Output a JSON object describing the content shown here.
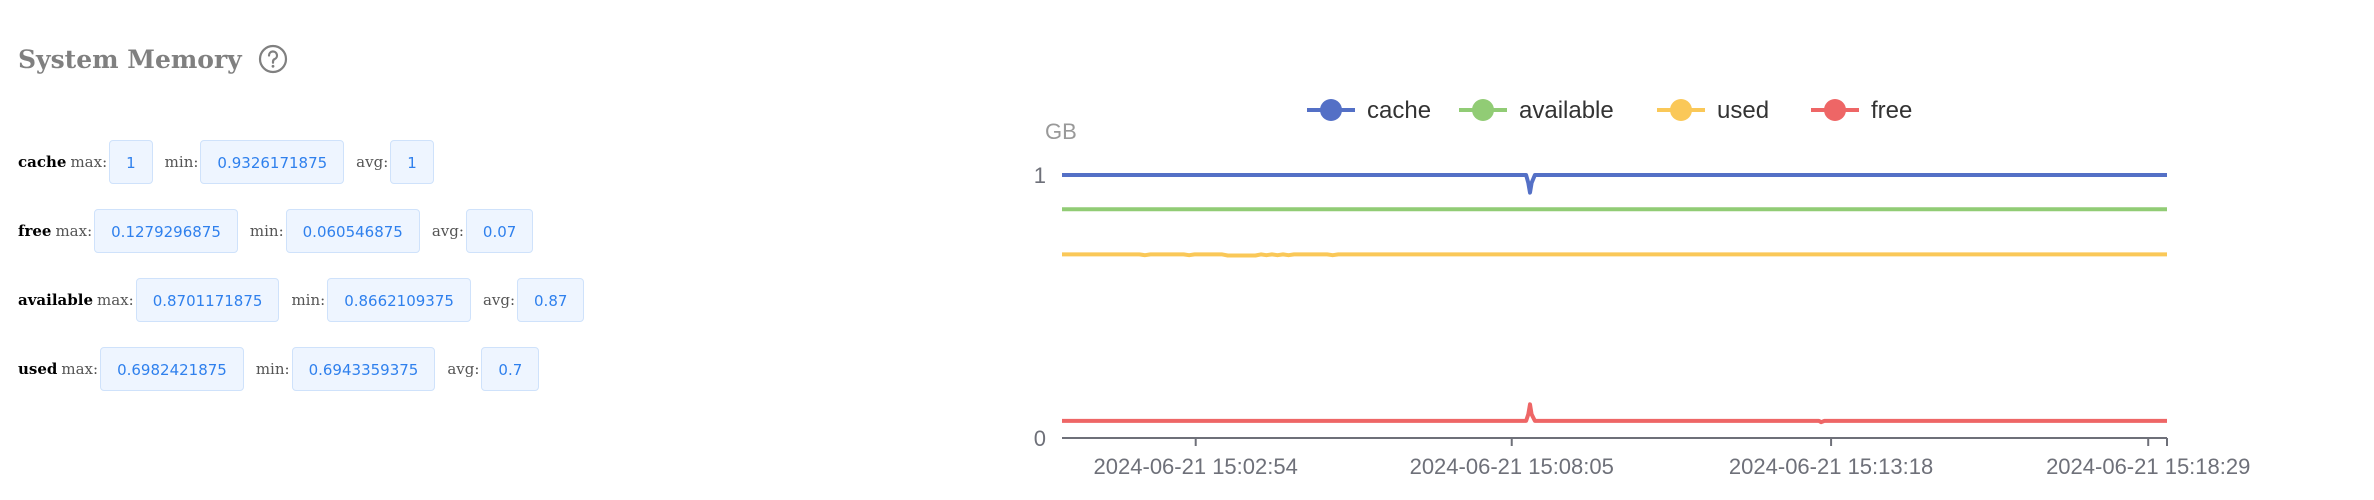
{
  "panel": {
    "title": "System Memory",
    "help_icon": "question-circle-icon"
  },
  "stats": [
    {
      "metric": "cache",
      "max_label": "max:",
      "max": "1",
      "min_label": "min:",
      "min": "0.9326171875",
      "avg_label": "avg:",
      "avg": "1"
    },
    {
      "metric": "free",
      "max_label": "max:",
      "max": "0.1279296875",
      "min_label": "min:",
      "min": "0.060546875",
      "avg_label": "avg:",
      "avg": "0.07"
    },
    {
      "metric": "available",
      "max_label": "max:",
      "max": "0.8701171875",
      "min_label": "min:",
      "min": "0.8662109375",
      "avg_label": "avg:",
      "avg": "0.87"
    },
    {
      "metric": "used",
      "max_label": "max:",
      "max": "0.6982421875",
      "min_label": "min:",
      "min": "0.6943359375",
      "avg_label": "avg:",
      "avg": "0.7"
    }
  ],
  "chart_data": {
    "type": "line",
    "title": "",
    "ylabel": "GB",
    "xlabel": "",
    "ylim": [
      0,
      1
    ],
    "yticks": [
      "0",
      "1"
    ],
    "x_ticks": [
      "2024-06-21 15:02:54",
      "2024-06-21 15:08:05",
      "2024-06-21 15:13:18",
      "2024-06-21 15:18:29"
    ],
    "x_tick_fracs": [
      0.121,
      0.407,
      0.696,
      0.983
    ],
    "legend_position": "top-center",
    "series": [
      {
        "name": "cache",
        "color": "#5470c6",
        "values": [
          [
            0.0,
            1.0
          ],
          [
            0.42,
            1.0
          ],
          [
            0.422,
            0.97
          ],
          [
            0.4235,
            0.933
          ],
          [
            0.425,
            0.97
          ],
          [
            0.428,
            1.0
          ],
          [
            1.0,
            1.0
          ]
        ]
      },
      {
        "name": "available",
        "color": "#91cc75",
        "values": [
          [
            0.0,
            0.87
          ],
          [
            1.0,
            0.87
          ]
        ]
      },
      {
        "name": "used",
        "color": "#fac858",
        "values": [
          [
            0.0,
            0.698
          ],
          [
            0.07,
            0.698
          ],
          [
            0.075,
            0.695
          ],
          [
            0.08,
            0.698
          ],
          [
            0.11,
            0.698
          ],
          [
            0.115,
            0.695
          ],
          [
            0.12,
            0.698
          ],
          [
            0.145,
            0.698
          ],
          [
            0.15,
            0.694
          ],
          [
            0.175,
            0.694
          ],
          [
            0.18,
            0.698
          ],
          [
            0.185,
            0.695
          ],
          [
            0.19,
            0.698
          ],
          [
            0.195,
            0.695
          ],
          [
            0.2,
            0.698
          ],
          [
            0.205,
            0.695
          ],
          [
            0.21,
            0.698
          ],
          [
            0.24,
            0.698
          ],
          [
            0.245,
            0.695
          ],
          [
            0.25,
            0.698
          ],
          [
            1.0,
            0.698
          ]
        ]
      },
      {
        "name": "free",
        "color": "#ee6666",
        "values": [
          [
            0.0,
            0.065
          ],
          [
            0.42,
            0.065
          ],
          [
            0.422,
            0.09
          ],
          [
            0.4235,
            0.128
          ],
          [
            0.425,
            0.09
          ],
          [
            0.428,
            0.065
          ],
          [
            0.685,
            0.065
          ],
          [
            0.687,
            0.06
          ],
          [
            0.69,
            0.065
          ],
          [
            1.0,
            0.065
          ]
        ]
      }
    ]
  }
}
